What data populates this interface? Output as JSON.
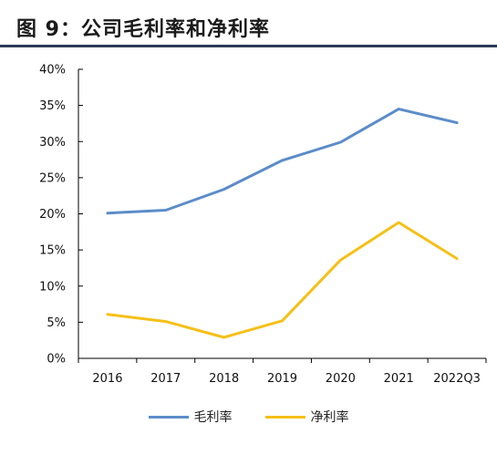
{
  "title": "图 9：公司毛利率和净利率",
  "chart_data": {
    "type": "line",
    "categories": [
      "2016",
      "2017",
      "2018",
      "2019",
      "2020",
      "2021",
      "2022Q3"
    ],
    "series": [
      {
        "name": "毛利率",
        "color": "#5b8cc9",
        "values": [
          20.1,
          20.5,
          23.4,
          27.4,
          29.9,
          34.5,
          32.6
        ]
      },
      {
        "name": "净利率",
        "color": "#f5c017",
        "values": [
          6.1,
          5.1,
          2.9,
          5.2,
          13.6,
          18.8,
          13.8
        ]
      }
    ],
    "y_ticks": [
      "0%",
      "5%",
      "10%",
      "15%",
      "20%",
      "25%",
      "30%",
      "35%",
      "40%"
    ],
    "ylim": [
      0,
      40
    ],
    "legend_position": "bottom"
  }
}
